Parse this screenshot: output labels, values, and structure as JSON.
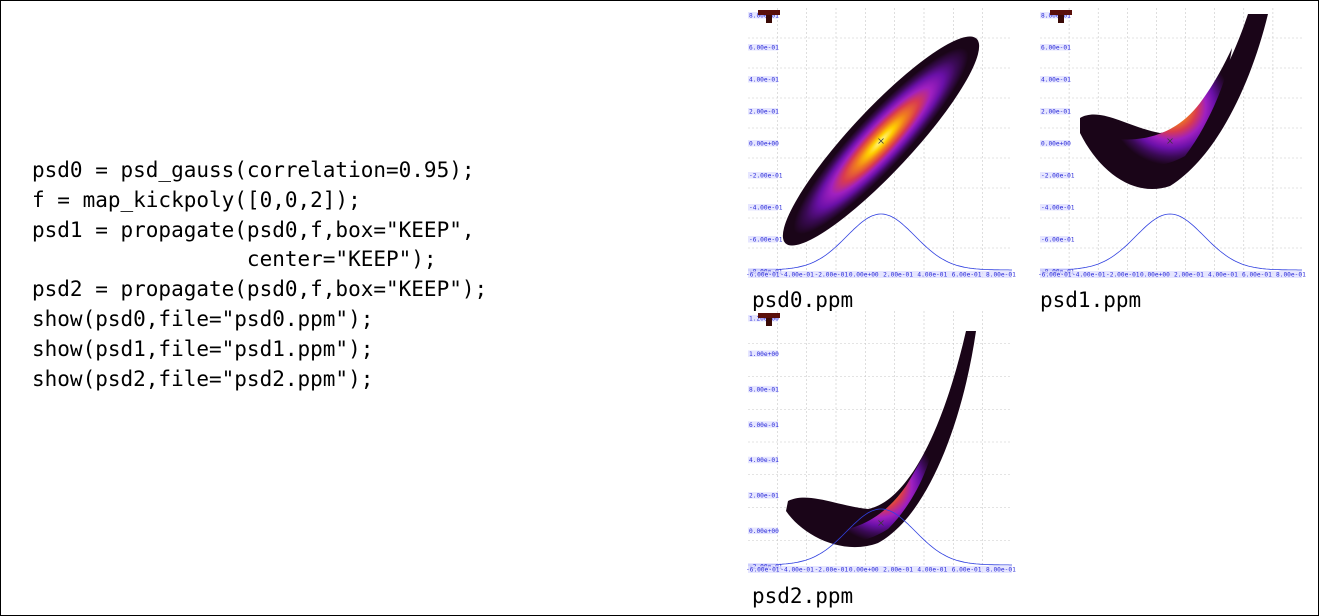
{
  "code_lines": [
    "psd0 = psd_gauss(correlation=0.95);",
    "f = map_kickpoly([0,0,2]);",
    "psd1 = propagate(psd0,f,box=\"KEEP\",",
    "                 center=\"KEEP\");",
    "psd2 = propagate(psd0,f,box=\"KEEP\");",
    "show(psd0,file=\"psd0.ppm\");",
    "show(psd1,file=\"psd1.ppm\");",
    "show(psd2,file=\"psd2.ppm\");"
  ],
  "captions": [
    "psd0.ppm",
    "psd1.ppm",
    "psd2.ppm"
  ],
  "colors": {
    "axis_label": "#2a2ad8",
    "grid": "#c8c8c8",
    "profile_curve": "#3040e0",
    "colormap": [
      "#1a0518",
      "#3a0a55",
      "#6a10a8",
      "#a020c0",
      "#d83a50",
      "#f07a20",
      "#ffd000",
      "#fffa90"
    ]
  },
  "chart_data": [
    {
      "type": "heatmap",
      "name": "psd0.ppm",
      "y_tick_labels": [
        "8.00e-01",
        "6.00e-01",
        "4.00e-01",
        "2.00e-01",
        "0.00e+00",
        "-2.00e-01",
        "-4.00e-01",
        "-6.00e-01",
        "-8.00e-01"
      ],
      "x_tick_labels": [
        "-6.00e-01",
        "-4.00e-01",
        "-2.00e-01",
        "0.00e+00",
        "2.00e-01",
        "4.00e-01",
        "6.00e-01",
        "8.00e-01"
      ],
      "ylim": [
        -0.8,
        0.8
      ],
      "xlim": [
        -0.8,
        0.8
      ],
      "shape": "ellipse",
      "center": [
        0.0,
        0.0
      ]
    },
    {
      "type": "heatmap",
      "name": "psd1.ppm",
      "y_tick_labels": [
        "8.00e-01",
        "6.00e-01",
        "4.00e-01",
        "2.00e-01",
        "0.00e+00",
        "-2.00e-01",
        "-4.00e-01",
        "-6.00e-01",
        "-8.00e-01"
      ],
      "x_tick_labels": [
        "-6.00e-01",
        "-4.00e-01",
        "-2.00e-01",
        "0.00e+00",
        "2.00e-01",
        "4.00e-01",
        "6.00e-01",
        "8.00e-01"
      ],
      "ylim": [
        -0.8,
        0.8
      ],
      "xlim": [
        -0.8,
        0.8
      ],
      "shape": "banana",
      "center": [
        0.0,
        0.0
      ]
    },
    {
      "type": "heatmap",
      "name": "psd2.ppm",
      "y_tick_labels": [
        "1.20e+00",
        "1.00e+00",
        "8.00e-01",
        "6.00e-01",
        "4.00e-01",
        "2.00e-01",
        "0.00e+00",
        "-2.00e-01"
      ],
      "x_tick_labels": [
        "-6.00e-01",
        "-4.00e-01",
        "-2.00e-01",
        "0.00e+00",
        "2.00e-01",
        "4.00e-01",
        "6.00e-01",
        "8.00e-01"
      ],
      "ylim": [
        -0.2,
        1.2
      ],
      "xlim": [
        -0.8,
        0.8
      ],
      "shape": "banana",
      "center": [
        0.0,
        0.0
      ]
    }
  ]
}
